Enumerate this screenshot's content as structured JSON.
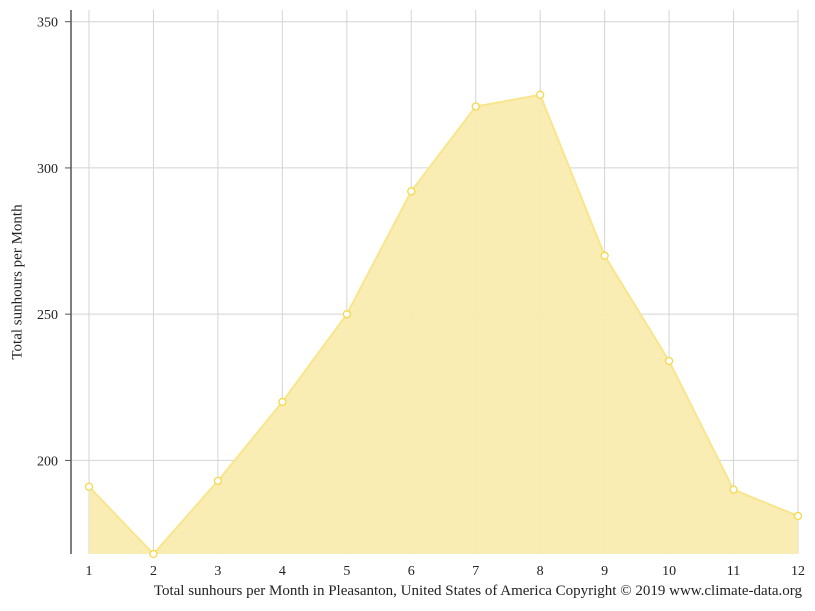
{
  "chart_data": {
    "type": "area",
    "title": "",
    "xlabel": "",
    "ylabel": "Total sunhours per Month",
    "x": [
      1,
      2,
      3,
      4,
      5,
      6,
      7,
      8,
      9,
      10,
      11,
      12
    ],
    "series": [
      {
        "values": [
          191,
          168,
          193,
          220,
          250,
          292,
          321,
          325,
          270,
          234,
          190,
          181
        ]
      }
    ],
    "ylim": [
      168,
      354
    ],
    "yticks": [
      200,
      250,
      300,
      350
    ],
    "grid": true,
    "legend": "none",
    "colors": {
      "fill": "#f9ecb0",
      "line": "#f8e58c",
      "marker_stroke": "#f5d84a",
      "grid": "#d4d4d4",
      "axis": "#555555"
    }
  },
  "caption": "Total sunhours per Month in Pleasanton, United States of America Copyright © 2019 www.climate-data.org"
}
